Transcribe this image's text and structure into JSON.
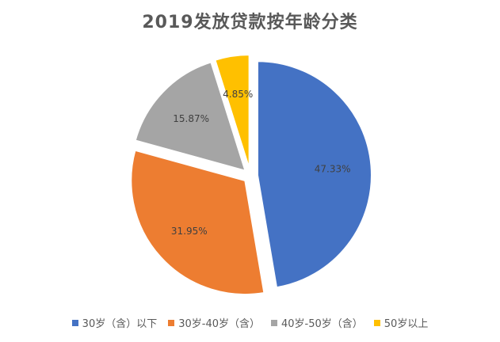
{
  "chart_data": {
    "type": "pie",
    "title": "2019发放贷款按年龄分类",
    "legend_position": "bottom",
    "slices": [
      {
        "name": "30岁（含）以下",
        "value": 47.33,
        "label": "47.33%",
        "color": "#4472C4"
      },
      {
        "name": "30岁-40岁（含）",
        "value": 31.95,
        "label": "31.95%",
        "color": "#ED7D31"
      },
      {
        "name": "40岁-50岁（含）",
        "value": 15.87,
        "label": "15.87%",
        "color": "#A5A5A5"
      },
      {
        "name": "50岁以上",
        "value": 4.85,
        "label": "4.85%",
        "color": "#FFC000"
      }
    ]
  }
}
